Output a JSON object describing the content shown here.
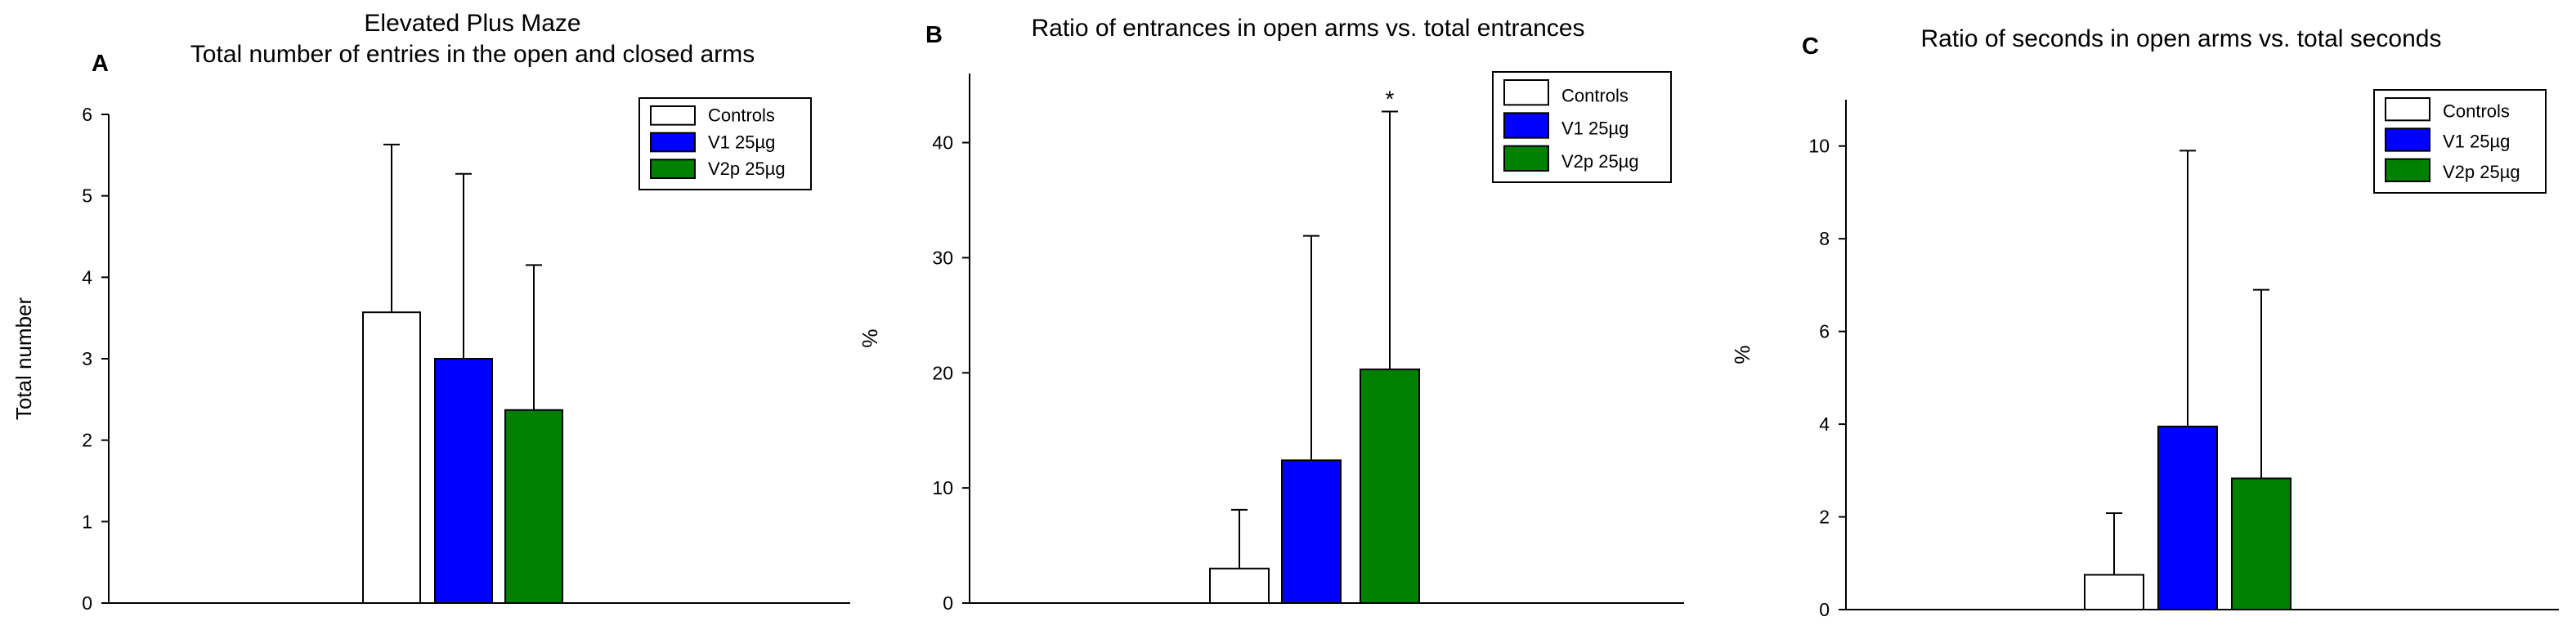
{
  "figure": {
    "panels": [
      {
        "letter": "A",
        "title_lines": [
          "Elevated Plus Maze",
          "Total number of entries in the open and closed arms"
        ],
        "ylabel": "Total number"
      },
      {
        "letter": "B",
        "title_lines": [
          "Ratio of entrances in open arms vs. total entrances"
        ],
        "ylabel": "%"
      },
      {
        "letter": "C",
        "title_lines": [
          "Ratio of seconds in open arms vs. total seconds"
        ],
        "ylabel": "%"
      }
    ],
    "colors": {
      "Controls": "#ffffff",
      "V1 25µg": "#0000ff",
      "V2p 25µg": "#008000",
      "axis": "#000000"
    }
  },
  "chart_data": [
    {
      "type": "bar",
      "title": "Elevated Plus Maze Total number of entries in the open and closed arms",
      "ylabel": "Total number",
      "xlabel": "",
      "ylim": [
        0,
        6
      ],
      "yticks": [
        0,
        1,
        2,
        3,
        4,
        5,
        6
      ],
      "series": [
        {
          "name": "Controls",
          "value": 3.57,
          "error": 2.06
        },
        {
          "name": "V1 25µg",
          "value": 3.0,
          "error": 2.27
        },
        {
          "name": "V2p 25µg",
          "value": 2.37,
          "error": 1.78
        }
      ],
      "legend": [
        "Controls",
        "V1 25µg",
        "V2p 25µg"
      ],
      "legend_position": "top-right",
      "annotations": []
    },
    {
      "type": "bar",
      "title": "Ratio of entrances in open arms vs. total entrances",
      "ylabel": "%",
      "xlabel": "",
      "ylim": [
        0,
        46
      ],
      "yticks": [
        0,
        10,
        20,
        30,
        40
      ],
      "series": [
        {
          "name": "Controls",
          "value": 3.0,
          "error": 5.1
        },
        {
          "name": "V1 25µg",
          "value": 12.4,
          "error": 19.5
        },
        {
          "name": "V2p 25µg",
          "value": 20.3,
          "error": 22.4
        }
      ],
      "legend": [
        "Controls",
        "V1 25µg",
        "V2p 25µg"
      ],
      "legend_position": "top-right",
      "annotations": [
        "*"
      ]
    },
    {
      "type": "bar",
      "title": "Ratio of seconds in open arms vs. total seconds",
      "ylabel": "%",
      "xlabel": "",
      "ylim": [
        0,
        11
      ],
      "yticks": [
        0,
        2,
        4,
        6,
        8,
        10
      ],
      "series": [
        {
          "name": "Controls",
          "value": 0.75,
          "error": 1.33
        },
        {
          "name": "V1 25µg",
          "value": 3.95,
          "error": 5.95
        },
        {
          "name": "V2p 25µg",
          "value": 2.83,
          "error": 4.07
        }
      ],
      "legend": [
        "Controls",
        "V1 25µg",
        "V2p 25µg"
      ],
      "legend_position": "top-right",
      "annotations": []
    }
  ]
}
